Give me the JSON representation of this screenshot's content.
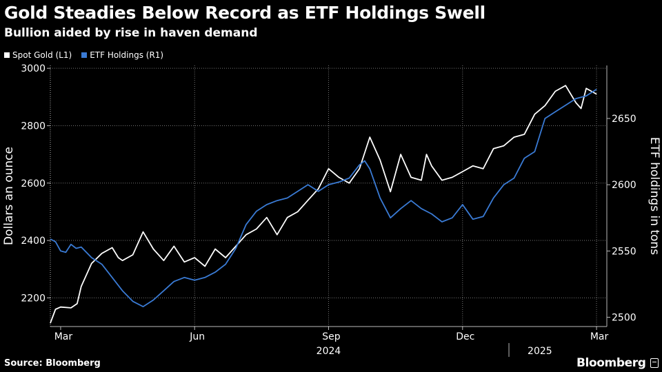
{
  "title": "Gold Steadies Below Record as ETF Holdings Swell",
  "subtitle": "Bullion aided by rise in haven demand",
  "legend": [
    {
      "label": "Spot Gold (L1)",
      "color": "#ffffff"
    },
    {
      "label": "ETF Holdings (R1)",
      "color": "#3a7bd5"
    }
  ],
  "source": "Source: Bloomberg",
  "brand": "Bloomberg",
  "chart_data": {
    "type": "line",
    "title": "Gold Steadies Below Record as ETF Holdings Swell",
    "subtitle": "Bullion aided by rise in haven demand",
    "x_axis": {
      "ticks": [
        "Mar",
        "Jun",
        "Sep",
        "Dec",
        "Mar"
      ],
      "tick_positions_weeks": [
        1,
        14,
        27,
        40,
        53
      ],
      "year_labels": [
        {
          "label": "2024",
          "week": 27
        },
        {
          "label": "2025",
          "week": 47.5
        }
      ],
      "year_divider_week": 44.5,
      "range_weeks": [
        0,
        54
      ]
    },
    "y_left": {
      "label": "Dollars an ounce",
      "range": [
        2100,
        3010
      ],
      "ticks": [
        2200,
        2400,
        2600,
        2800,
        3000
      ]
    },
    "y_right": {
      "label": "ETF holdings in tons",
      "range": [
        2493,
        2690
      ],
      "ticks": [
        2500,
        2550,
        2600,
        2650
      ]
    },
    "series": [
      {
        "name": "Spot Gold (L1)",
        "axis": "left",
        "color": "#ffffff",
        "x": [
          0,
          0.5,
          1,
          2,
          2.6,
          3,
          4,
          5,
          6,
          6.6,
          7,
          8,
          9,
          10,
          11,
          12,
          13,
          14,
          15,
          16,
          17,
          18,
          19,
          20,
          21,
          22,
          23,
          24,
          25,
          26,
          27,
          28,
          29,
          30,
          31,
          32,
          33,
          34,
          35,
          36,
          36.5,
          37,
          38,
          39,
          40,
          41,
          42,
          43,
          44,
          45,
          46,
          47,
          48,
          49,
          50,
          51,
          51.5,
          52,
          53
        ],
        "values": [
          2112,
          2160,
          2168,
          2165,
          2180,
          2240,
          2320,
          2355,
          2375,
          2340,
          2330,
          2350,
          2430,
          2370,
          2330,
          2380,
          2325,
          2340,
          2310,
          2370,
          2340,
          2380,
          2420,
          2440,
          2480,
          2420,
          2480,
          2500,
          2540,
          2580,
          2650,
          2620,
          2600,
          2650,
          2760,
          2680,
          2570,
          2700,
          2620,
          2610,
          2700,
          2660,
          2610,
          2620,
          2640,
          2660,
          2650,
          2720,
          2730,
          2760,
          2770,
          2840,
          2870,
          2920,
          2940,
          2880,
          2860,
          2930,
          2910
        ]
      },
      {
        "name": "ETF Holdings (R1)",
        "axis": "right",
        "color": "#3a7bd5",
        "x": [
          0,
          0.5,
          1,
          1.5,
          2,
          2.5,
          3,
          4,
          5,
          6,
          7,
          8,
          9,
          10,
          11,
          12,
          13,
          14,
          15,
          16,
          17,
          18,
          19,
          20,
          21,
          22,
          23,
          24,
          25,
          26,
          27,
          28,
          29,
          30,
          30.5,
          31,
          32,
          33,
          34,
          35,
          36,
          37,
          38,
          39,
          40,
          41,
          42,
          43,
          44,
          45,
          46,
          47,
          48,
          49,
          50,
          51,
          52,
          53
        ],
        "values": [
          2559,
          2557,
          2550,
          2549,
          2555,
          2552,
          2553,
          2545,
          2540,
          2530,
          2520,
          2512,
          2508,
          2513,
          2520,
          2527,
          2530,
          2528,
          2530,
          2534,
          2540,
          2552,
          2570,
          2580,
          2585,
          2588,
          2590,
          2595,
          2600,
          2595,
          2600,
          2602,
          2605,
          2615,
          2618,
          2612,
          2590,
          2575,
          2582,
          2588,
          2582,
          2578,
          2572,
          2575,
          2585,
          2574,
          2576,
          2590,
          2600,
          2605,
          2620,
          2625,
          2650,
          2655,
          2660,
          2665,
          2667,
          2672
        ]
      }
    ]
  }
}
